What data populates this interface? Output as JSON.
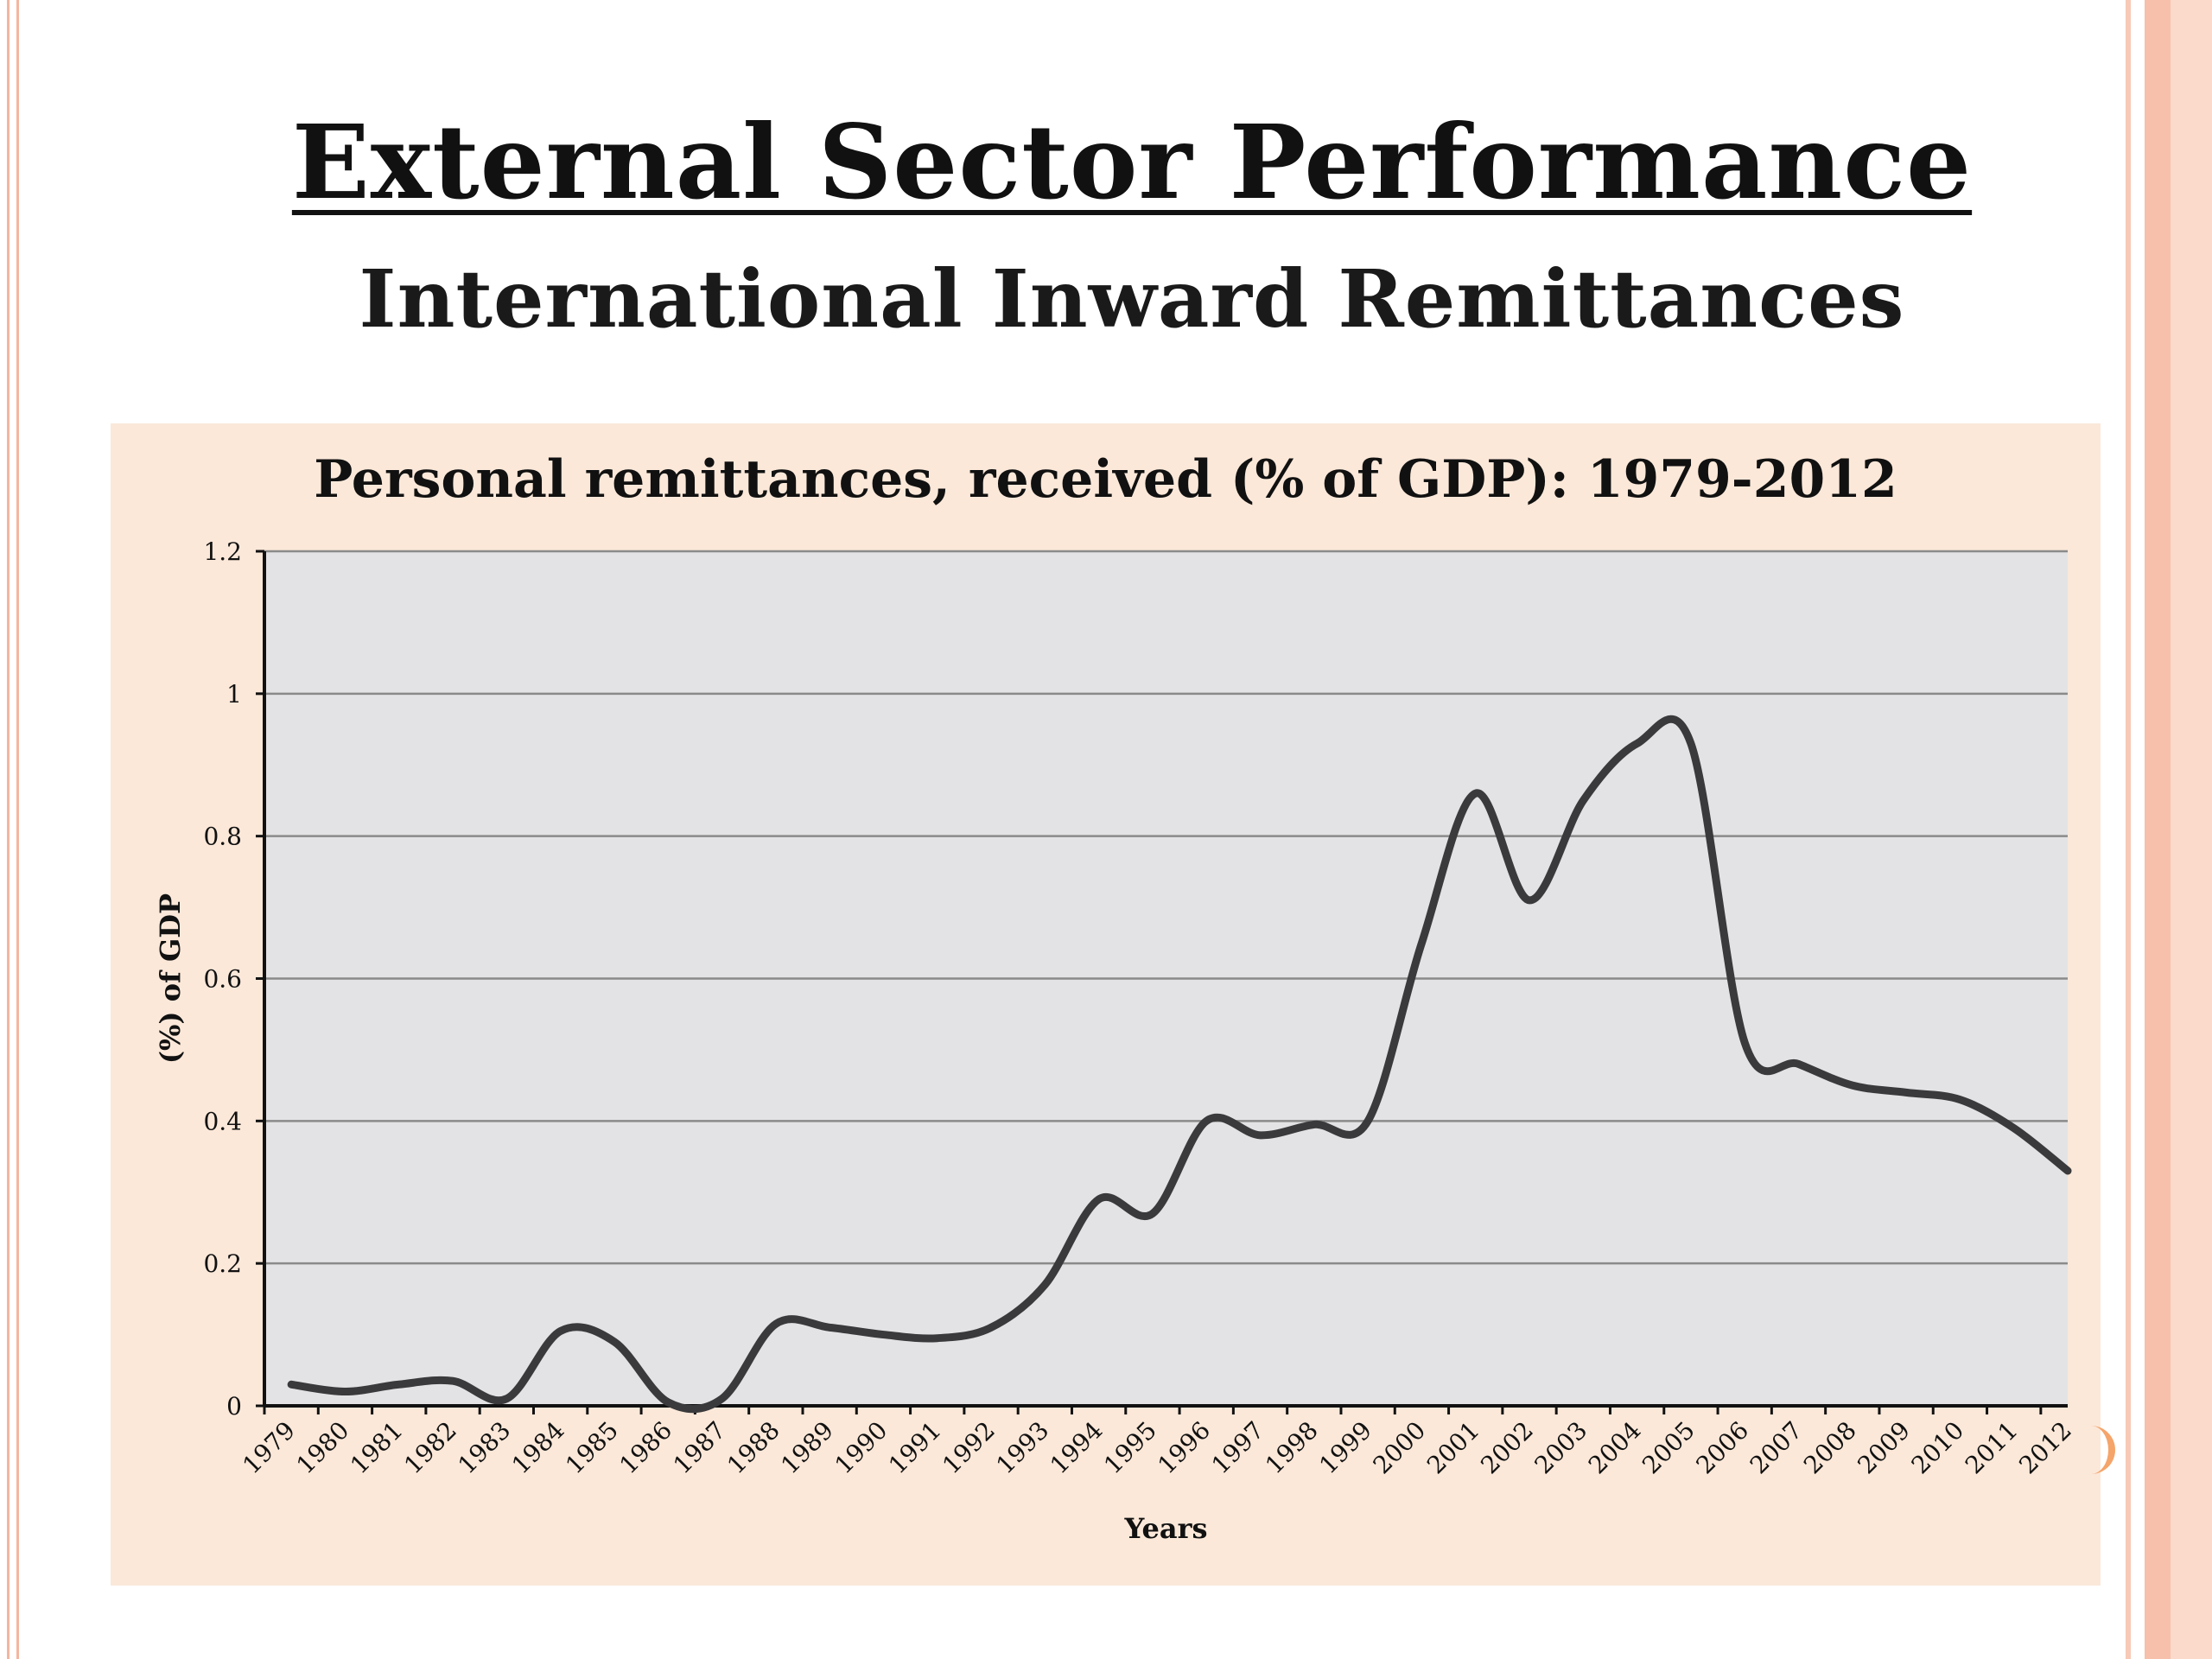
{
  "slide": {
    "title": "External Sector Performance",
    "subtitle": "International Inward Remittances"
  },
  "colors": {
    "panel_bg": "#fbe8d9",
    "plot_bg": "#e3e3e5",
    "line": "#3a3a3c",
    "accent": "#f3b6a0"
  },
  "chart_data": {
    "type": "line",
    "title": "Personal remittances, received (% of GDP): 1979-2012",
    "xlabel": "Years",
    "ylabel": "(%) of GDP",
    "ylim": [
      0,
      1.2
    ],
    "yticks": [
      "0",
      "0.2",
      "0.4",
      "0.6",
      "0.8",
      "1",
      "1.2"
    ],
    "grid": true,
    "legend": "none",
    "categories": [
      "1979",
      "1980",
      "1981",
      "1982",
      "1983",
      "1984",
      "1985",
      "1986",
      "1987",
      "1988",
      "1989",
      "1990",
      "1991",
      "1992",
      "1993",
      "1994",
      "1995",
      "1996",
      "1997",
      "1998",
      "1999",
      "2000",
      "2001",
      "2002",
      "2003",
      "2004",
      "2005",
      "2006",
      "2007",
      "2008",
      "2009",
      "2010",
      "2011",
      "2012"
    ],
    "series": [
      {
        "values": [
          0.03,
          0.02,
          0.03,
          0.035,
          0.01,
          0.105,
          0.09,
          0.005,
          0.01,
          0.115,
          0.11,
          0.1,
          0.095,
          0.11,
          0.17,
          0.29,
          0.27,
          0.4,
          0.38,
          0.395,
          0.4,
          0.65,
          0.86,
          0.71,
          0.85,
          0.93,
          0.93,
          0.51,
          0.48,
          0.45,
          0.44,
          0.43,
          0.39,
          0.33
        ]
      }
    ]
  }
}
